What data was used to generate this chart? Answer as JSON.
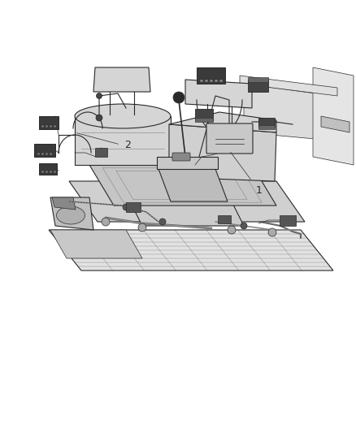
{
  "background_color": "#ffffff",
  "line_color": "#2a2a2a",
  "dark_color": "#1a1a1a",
  "gray_light": "#d8d8d8",
  "gray_mid": "#b0b0b0",
  "gray_dark": "#888888",
  "figure_width": 4.38,
  "figure_height": 5.33,
  "dpi": 100,
  "label_1_text": "1",
  "label_2_text": "2",
  "label_fontsize": 9
}
